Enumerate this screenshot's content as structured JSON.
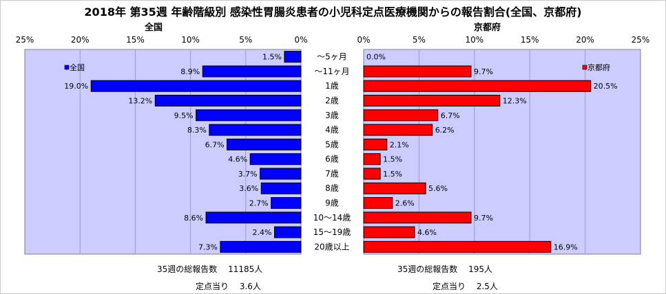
{
  "title": "2018年 第35週 年齢階級別 感染性胃腸炎患者の小児科定点医療機関からの報告割合(全国、京都府)",
  "chart_data": {
    "type": "bar",
    "categories": [
      "～5ヶ月",
      "～11ヶ月",
      "1歳",
      "2歳",
      "3歳",
      "4歳",
      "5歳",
      "6歳",
      "7歳",
      "8歳",
      "9歳",
      "10～14歳",
      "15～19歳",
      "20歳以上"
    ],
    "xlim": [
      0,
      25
    ],
    "x_ticks": [
      "0%",
      "5%",
      "10%",
      "15%",
      "20%",
      "25%"
    ],
    "grid": true,
    "series": [
      {
        "name": "全国",
        "panel_title": "全国",
        "legend": "全国",
        "color": "#0000ff",
        "direction": "left",
        "values": [
          1.5,
          8.9,
          19.0,
          13.2,
          9.5,
          8.3,
          6.7,
          4.6,
          3.7,
          3.6,
          2.7,
          8.6,
          2.4,
          7.3
        ],
        "labels": [
          "1.5%",
          "8.9%",
          "19.0%",
          "13.2%",
          "9.5%",
          "8.3%",
          "6.7%",
          "4.6%",
          "3.7%",
          "3.6%",
          "2.7%",
          "8.6%",
          "2.4%",
          "7.3%"
        ]
      },
      {
        "name": "京都府",
        "panel_title": "京都府",
        "legend": "京都府",
        "color": "#ff0000",
        "direction": "right",
        "values": [
          0.0,
          9.7,
          20.5,
          12.3,
          6.7,
          6.2,
          2.1,
          1.5,
          1.5,
          5.6,
          2.6,
          9.7,
          4.6,
          16.9
        ],
        "labels": [
          "0.0%",
          "9.7%",
          "20.5%",
          "12.3%",
          "6.7%",
          "6.2%",
          "2.1%",
          "1.5%",
          "1.5%",
          "5.6%",
          "2.6%",
          "9.7%",
          "4.6%",
          "16.9%"
        ]
      }
    ],
    "plot_background": "#ccccff"
  },
  "footer": {
    "national_total": "35週の総報告数　 11185人",
    "national_per_point": "定点当り　 3.6人",
    "kyoto_total": "35週の総報告数　 195人",
    "kyoto_per_point": "定点当り　 2.5人"
  }
}
